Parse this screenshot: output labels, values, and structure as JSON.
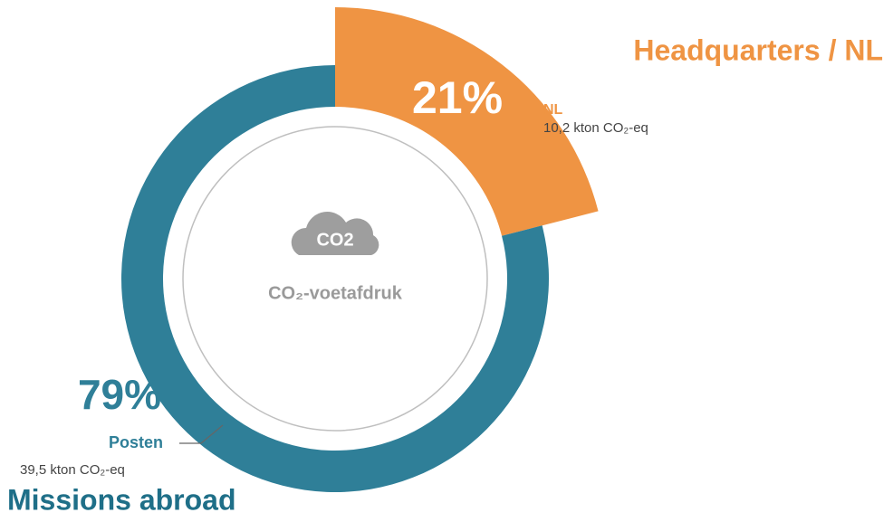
{
  "chart_data": {
    "type": "pie",
    "categories": [
      "NL",
      "Posten"
    ],
    "values": [
      21,
      79
    ],
    "value_labels": [
      "21%",
      "79%"
    ],
    "colors": [
      "#ef9443",
      "#2f7f98"
    ],
    "amounts": [
      "10,2 kton CO₂-eq",
      "39,5 kton CO₂-eq"
    ],
    "group_labels": [
      "Headquarters / NL",
      "Missions abroad"
    ],
    "center_icon": "CO2",
    "center_label": "CO₂-voetafdruk"
  }
}
